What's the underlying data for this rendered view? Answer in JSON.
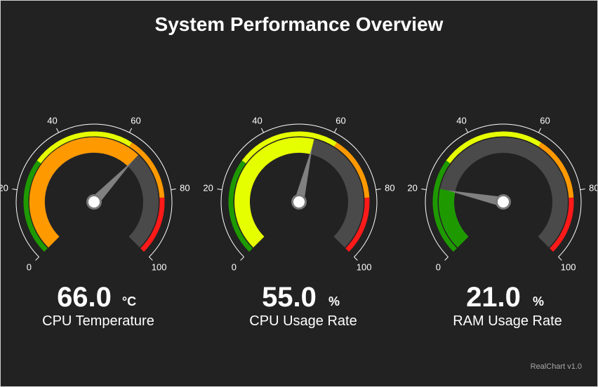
{
  "title": "System Performance Overview",
  "credit": "RealChart v1.0",
  "colors": {
    "background": "#222222",
    "track": "#4a4a4a",
    "ring": "#ffffff",
    "needle": "#808080",
    "hub": "#ffffff",
    "band_green": "#1e9a00",
    "band_yellow": "#e6ff00",
    "band_orange": "#ff9900",
    "band_red": "#ff1a1a"
  },
  "chart_data": [
    {
      "type": "gauge",
      "label": "CPU Temperature",
      "value": 66.0,
      "value_text": "66.0",
      "unit": "°C",
      "range": [
        0,
        100
      ],
      "ticks": [
        "0",
        "20",
        "40",
        "60",
        "80",
        "100"
      ],
      "fill_color": "#ff9900",
      "bands": [
        {
          "from": 0,
          "to": 30,
          "color": "#1e9a00"
        },
        {
          "from": 30,
          "to": 62,
          "color": "#e6ff00"
        },
        {
          "from": 62,
          "to": 82,
          "color": "#ff9900"
        },
        {
          "from": 82,
          "to": 100,
          "color": "#ff1a1a"
        }
      ]
    },
    {
      "type": "gauge",
      "label": "CPU Usage Rate",
      "value": 55.0,
      "value_text": "55.0",
      "unit": "%",
      "range": [
        0,
        100
      ],
      "ticks": [
        "0",
        "20",
        "40",
        "60",
        "80",
        "100"
      ],
      "fill_color": "#e6ff00",
      "bands": [
        {
          "from": 0,
          "to": 30,
          "color": "#1e9a00"
        },
        {
          "from": 30,
          "to": 62,
          "color": "#e6ff00"
        },
        {
          "from": 62,
          "to": 82,
          "color": "#ff9900"
        },
        {
          "from": 82,
          "to": 100,
          "color": "#ff1a1a"
        }
      ]
    },
    {
      "type": "gauge",
      "label": "RAM Usage Rate",
      "value": 21.0,
      "value_text": "21.0",
      "unit": "%",
      "range": [
        0,
        100
      ],
      "ticks": [
        "0",
        "20",
        "40",
        "60",
        "80",
        "100"
      ],
      "fill_color": "#1e9a00",
      "bands": [
        {
          "from": 0,
          "to": 30,
          "color": "#1e9a00"
        },
        {
          "from": 30,
          "to": 62,
          "color": "#e6ff00"
        },
        {
          "from": 62,
          "to": 82,
          "color": "#ff9900"
        },
        {
          "from": 82,
          "to": 100,
          "color": "#ff1a1a"
        }
      ]
    }
  ]
}
